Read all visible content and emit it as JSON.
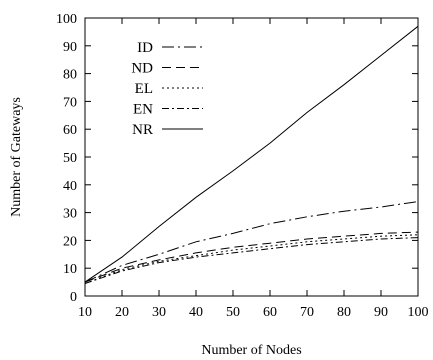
{
  "chart_data": {
    "type": "line",
    "title": "",
    "xlabel": "Number of Nodes",
    "ylabel": "Number of Gateways",
    "xlim": [
      10,
      100
    ],
    "ylim": [
      0,
      100
    ],
    "xticks": [
      10,
      20,
      30,
      40,
      50,
      60,
      70,
      80,
      90,
      100
    ],
    "yticks": [
      0,
      10,
      20,
      30,
      40,
      50,
      60,
      70,
      80,
      90,
      100
    ],
    "grid": false,
    "legend_position": "top-left",
    "x": [
      10,
      20,
      30,
      40,
      50,
      60,
      70,
      80,
      90,
      100
    ],
    "series": [
      {
        "name": "ID",
        "dash": "long-dash-dot",
        "values": [
          5,
          11,
          15,
          19.5,
          22.5,
          26,
          28.5,
          30.5,
          32,
          34
        ]
      },
      {
        "name": "ND",
        "dash": "dashed",
        "values": [
          5,
          10,
          13,
          15.5,
          17.5,
          19,
          20.5,
          21.5,
          22.5,
          23
        ]
      },
      {
        "name": "EL",
        "dash": "dotted",
        "values": [
          4.5,
          9.5,
          12.5,
          14.5,
          16.5,
          18,
          19.5,
          20.5,
          21.5,
          22
        ]
      },
      {
        "name": "EN",
        "dash": "dash-dot",
        "values": [
          4.5,
          9,
          12,
          14,
          15.5,
          17,
          18.5,
          19.5,
          20.5,
          21
        ]
      },
      {
        "name": "NR",
        "dash": "solid",
        "values": [
          5,
          14,
          25,
          35.5,
          45,
          55,
          66,
          76,
          86.5,
          97
        ]
      }
    ]
  }
}
